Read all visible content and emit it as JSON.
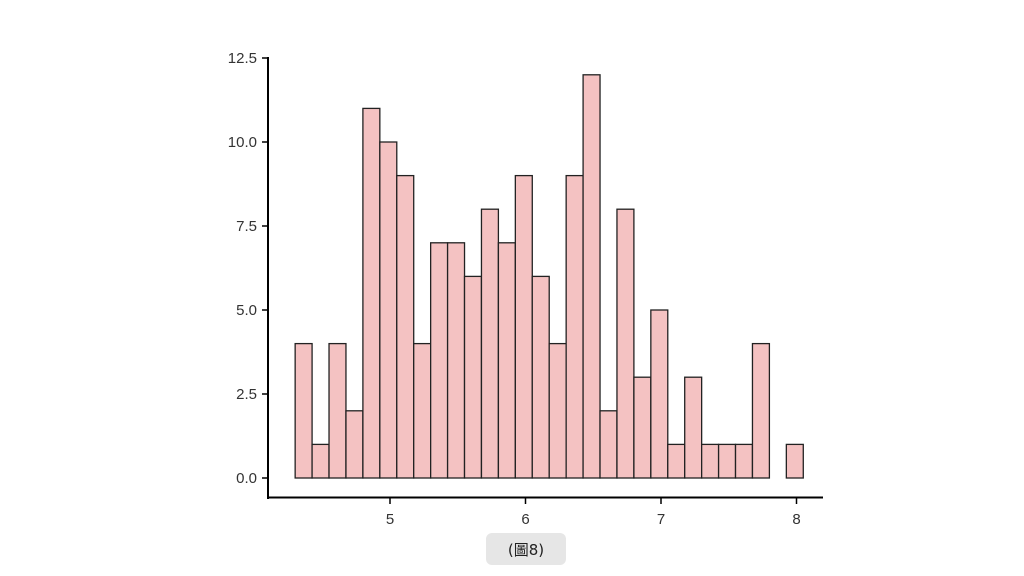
{
  "chart_data": {
    "type": "bar",
    "bin_edges_start": 4.3,
    "bin_width": 0.125,
    "counts": [
      4,
      1,
      4,
      2,
      11,
      10,
      9,
      4,
      7,
      7,
      6,
      8,
      7,
      9,
      6,
      4,
      9,
      12,
      2,
      8,
      3,
      5,
      1,
      3,
      1,
      1,
      1,
      4,
      0,
      1
    ],
    "xlim": [
      4.3,
      8.05
    ],
    "ylim": [
      0,
      12.5
    ],
    "xticks": [
      5,
      6,
      7,
      8
    ],
    "xtick_labels": [
      "5",
      "6",
      "7",
      "8"
    ],
    "yticks": [
      0,
      2.5,
      5,
      7.5,
      10,
      12.5
    ],
    "ytick_labels": [
      "0.0",
      "2.5",
      "5.0",
      "7.5",
      "10.0",
      "12.5"
    ],
    "title": "",
    "xlabel": "",
    "ylabel": "",
    "grid": false,
    "bar_color": "#f4c2c2",
    "edge_color": "#222222"
  },
  "caption": "(圖8)"
}
